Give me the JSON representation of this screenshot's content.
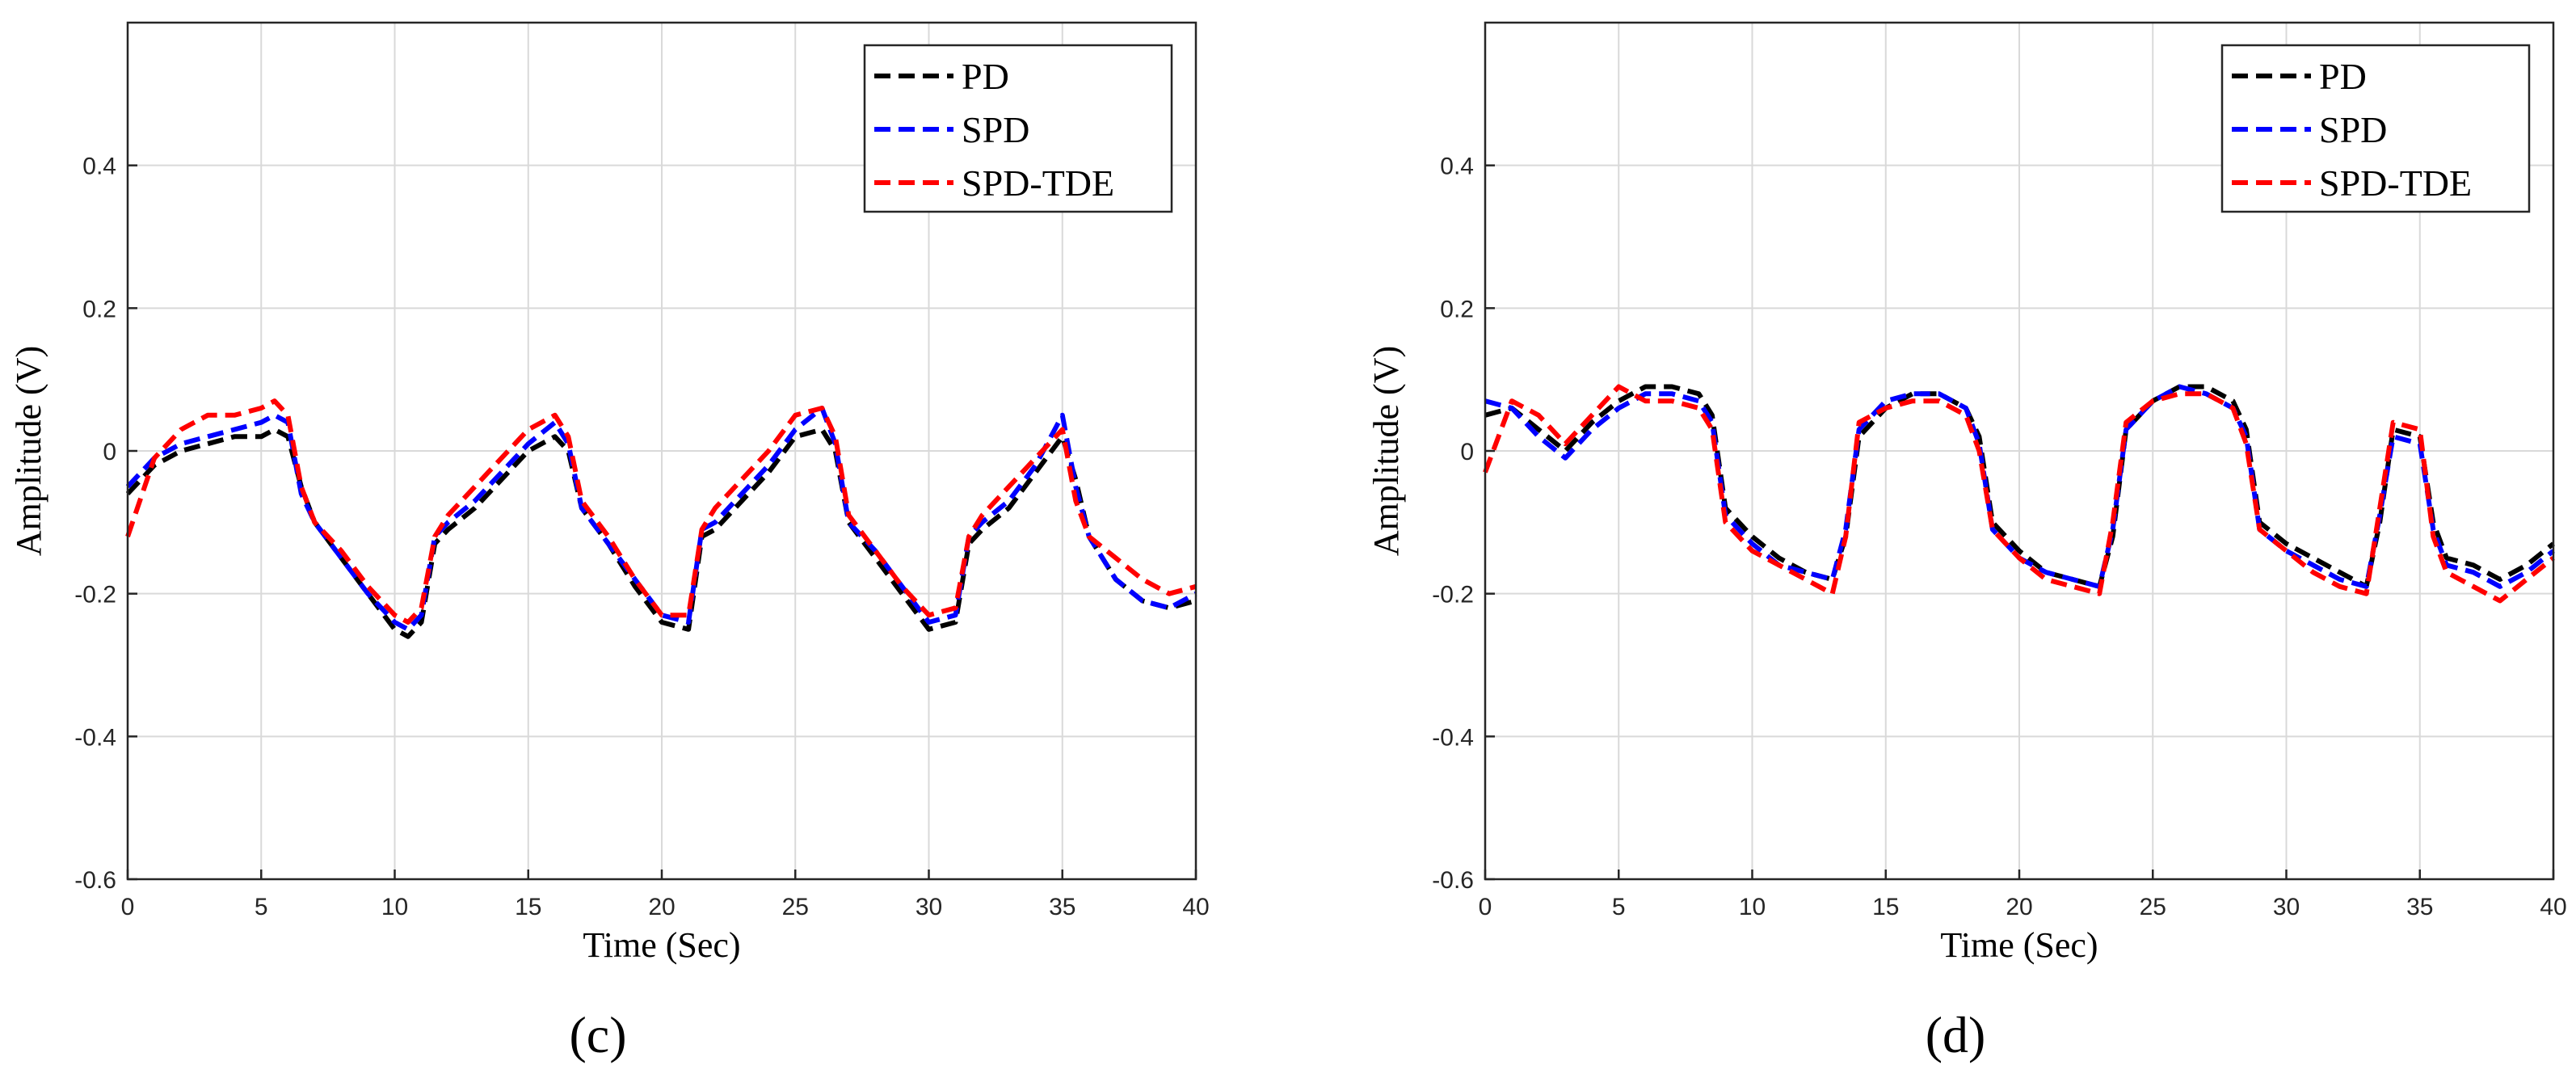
{
  "chart_data": [
    {
      "type": "line",
      "panel_label": "(c)",
      "xlabel": "Time (Sec)",
      "ylabel": "Amplitude (V)",
      "xlim": [
        0,
        40
      ],
      "ylim": [
        -0.6,
        0.6
      ],
      "xticks": [
        0,
        5,
        10,
        15,
        20,
        25,
        30,
        35,
        40
      ],
      "yticks": [
        -0.6,
        -0.4,
        -0.2,
        0,
        0.2,
        0.4
      ],
      "grid": true,
      "legend_position": "top-right",
      "series": [
        {
          "name": "PD",
          "color": "#000000",
          "x": [
            0,
            1,
            2,
            3,
            4,
            5,
            5.5,
            6,
            6.5,
            7,
            8,
            9,
            10,
            10.5,
            11,
            11.5,
            12,
            13,
            14,
            15,
            16,
            16.5,
            17,
            18,
            19,
            20,
            21,
            21.5,
            22,
            23,
            24,
            25,
            26,
            26.5,
            27,
            28,
            29,
            30,
            31,
            31.5,
            32,
            33,
            34,
            35,
            35.5,
            36,
            37,
            38,
            39,
            40
          ],
          "y": [
            -0.06,
            -0.02,
            0.0,
            0.01,
            0.02,
            0.02,
            0.03,
            0.02,
            -0.05,
            -0.1,
            -0.15,
            -0.2,
            -0.25,
            -0.26,
            -0.24,
            -0.13,
            -0.11,
            -0.08,
            -0.04,
            0.0,
            0.02,
            0.0,
            -0.08,
            -0.13,
            -0.19,
            -0.24,
            -0.25,
            -0.12,
            -0.11,
            -0.07,
            -0.03,
            0.02,
            0.03,
            0.0,
            -0.1,
            -0.15,
            -0.2,
            -0.25,
            -0.24,
            -0.13,
            -0.11,
            -0.08,
            -0.03,
            0.02,
            -0.04,
            -0.12,
            -0.18,
            -0.21,
            -0.22,
            -0.21
          ]
        },
        {
          "name": "SPD",
          "color": "#0000ff",
          "x": [
            0,
            1,
            2,
            3,
            4,
            5,
            5.5,
            6,
            6.5,
            7,
            8,
            9,
            10,
            10.5,
            11,
            11.5,
            12,
            13,
            14,
            15,
            16,
            16.5,
            17,
            18,
            19,
            20,
            21,
            21.5,
            22,
            23,
            24,
            25,
            26,
            26.5,
            27,
            28,
            29,
            30,
            31,
            31.5,
            32,
            33,
            34,
            35,
            35.5,
            36,
            37,
            38,
            39,
            40
          ],
          "y": [
            -0.05,
            -0.01,
            0.01,
            0.02,
            0.03,
            0.04,
            0.05,
            0.04,
            -0.06,
            -0.1,
            -0.15,
            -0.2,
            -0.24,
            -0.25,
            -0.23,
            -0.12,
            -0.1,
            -0.07,
            -0.03,
            0.01,
            0.04,
            0.01,
            -0.08,
            -0.13,
            -0.18,
            -0.23,
            -0.24,
            -0.11,
            -0.1,
            -0.06,
            -0.02,
            0.03,
            0.06,
            0.01,
            -0.1,
            -0.14,
            -0.19,
            -0.24,
            -0.23,
            -0.12,
            -0.1,
            -0.07,
            -0.02,
            0.05,
            -0.05,
            -0.12,
            -0.18,
            -0.21,
            -0.22,
            -0.2
          ]
        },
        {
          "name": "SPD-TDE",
          "color": "#ff0000",
          "x": [
            0,
            1,
            2,
            3,
            4,
            5,
            5.5,
            6,
            6.5,
            7,
            8,
            9,
            10,
            10.5,
            11,
            11.5,
            12,
            13,
            14,
            15,
            16,
            16.5,
            17,
            18,
            19,
            20,
            21,
            21.5,
            22,
            23,
            24,
            25,
            26,
            26.5,
            27,
            28,
            29,
            30,
            31,
            31.5,
            32,
            33,
            34,
            35,
            35.5,
            36,
            37,
            38,
            39,
            40
          ],
          "y": [
            -0.12,
            -0.01,
            0.03,
            0.05,
            0.05,
            0.06,
            0.07,
            0.05,
            -0.05,
            -0.1,
            -0.14,
            -0.19,
            -0.23,
            -0.24,
            -0.22,
            -0.12,
            -0.09,
            -0.05,
            -0.01,
            0.03,
            0.05,
            0.02,
            -0.07,
            -0.12,
            -0.18,
            -0.23,
            -0.23,
            -0.11,
            -0.08,
            -0.04,
            0.0,
            0.05,
            0.06,
            0.02,
            -0.09,
            -0.14,
            -0.19,
            -0.23,
            -0.22,
            -0.12,
            -0.09,
            -0.05,
            -0.01,
            0.03,
            -0.07,
            -0.12,
            -0.15,
            -0.18,
            -0.2,
            -0.19
          ]
        }
      ]
    },
    {
      "type": "line",
      "panel_label": "(d)",
      "xlabel": "Time (Sec)",
      "ylabel": "Amplitude (V)",
      "xlim": [
        0,
        40
      ],
      "ylim": [
        -0.6,
        0.6
      ],
      "xticks": [
        0,
        5,
        10,
        15,
        20,
        25,
        30,
        35,
        40
      ],
      "yticks": [
        -0.6,
        -0.4,
        -0.2,
        0,
        0.2,
        0.4
      ],
      "grid": true,
      "legend_position": "top-right",
      "series": [
        {
          "name": "PD",
          "color": "#000000",
          "x": [
            0,
            1,
            2,
            3,
            4,
            5,
            6,
            7,
            8,
            8.5,
            9,
            10,
            11,
            12,
            13,
            13.5,
            14,
            15,
            16,
            17,
            18,
            18.5,
            19,
            20,
            21,
            22,
            23,
            23.5,
            24,
            25,
            26,
            27,
            28,
            28.5,
            29,
            30,
            31,
            32,
            33,
            33.5,
            34,
            35,
            35.5,
            36,
            37,
            38,
            39,
            40
          ],
          "y": [
            0.05,
            0.06,
            0.03,
            0.0,
            0.04,
            0.07,
            0.09,
            0.09,
            0.08,
            0.05,
            -0.08,
            -0.12,
            -0.15,
            -0.17,
            -0.18,
            -0.12,
            0.02,
            0.06,
            0.08,
            0.08,
            0.06,
            0.02,
            -0.1,
            -0.14,
            -0.17,
            -0.18,
            -0.19,
            -0.12,
            0.03,
            0.07,
            0.09,
            0.09,
            0.07,
            0.03,
            -0.1,
            -0.13,
            -0.15,
            -0.17,
            -0.19,
            -0.1,
            0.03,
            0.02,
            -0.1,
            -0.15,
            -0.16,
            -0.18,
            -0.16,
            -0.13
          ]
        },
        {
          "name": "SPD",
          "color": "#0000ff",
          "x": [
            0,
            1,
            2,
            3,
            4,
            5,
            6,
            7,
            8,
            8.5,
            9,
            10,
            11,
            12,
            13,
            13.5,
            14,
            15,
            16,
            17,
            18,
            18.5,
            19,
            20,
            21,
            22,
            23,
            23.5,
            24,
            25,
            26,
            27,
            28,
            28.5,
            29,
            30,
            31,
            32,
            33,
            33.5,
            34,
            35,
            35.5,
            36,
            37,
            38,
            39,
            40
          ],
          "y": [
            0.07,
            0.06,
            0.02,
            -0.01,
            0.03,
            0.06,
            0.08,
            0.08,
            0.07,
            0.04,
            -0.09,
            -0.13,
            -0.16,
            -0.17,
            -0.18,
            -0.11,
            0.03,
            0.07,
            0.08,
            0.08,
            0.06,
            0.01,
            -0.11,
            -0.15,
            -0.17,
            -0.18,
            -0.19,
            -0.11,
            0.03,
            0.07,
            0.09,
            0.08,
            0.06,
            0.02,
            -0.11,
            -0.14,
            -0.16,
            -0.18,
            -0.19,
            -0.09,
            0.02,
            0.01,
            -0.11,
            -0.16,
            -0.17,
            -0.19,
            -0.17,
            -0.14
          ]
        },
        {
          "name": "SPD-TDE",
          "color": "#ff0000",
          "x": [
            0,
            1,
            2,
            3,
            4,
            5,
            6,
            7,
            8,
            8.5,
            9,
            10,
            11,
            12,
            13,
            13.5,
            14,
            15,
            16,
            17,
            18,
            18.5,
            19,
            20,
            21,
            22,
            23,
            23.5,
            24,
            25,
            26,
            27,
            28,
            28.5,
            29,
            30,
            31,
            32,
            33,
            33.5,
            34,
            35,
            35.5,
            36,
            37,
            38,
            39,
            40
          ],
          "y": [
            -0.03,
            0.07,
            0.05,
            0.01,
            0.05,
            0.09,
            0.07,
            0.07,
            0.06,
            0.03,
            -0.1,
            -0.14,
            -0.16,
            -0.18,
            -0.2,
            -0.12,
            0.04,
            0.06,
            0.07,
            0.07,
            0.05,
            0.0,
            -0.11,
            -0.15,
            -0.18,
            -0.19,
            -0.2,
            -0.1,
            0.04,
            0.07,
            0.08,
            0.08,
            0.06,
            0.01,
            -0.11,
            -0.14,
            -0.17,
            -0.19,
            -0.2,
            -0.08,
            0.04,
            0.03,
            -0.12,
            -0.17,
            -0.19,
            -0.21,
            -0.18,
            -0.15
          ]
        }
      ]
    }
  ]
}
